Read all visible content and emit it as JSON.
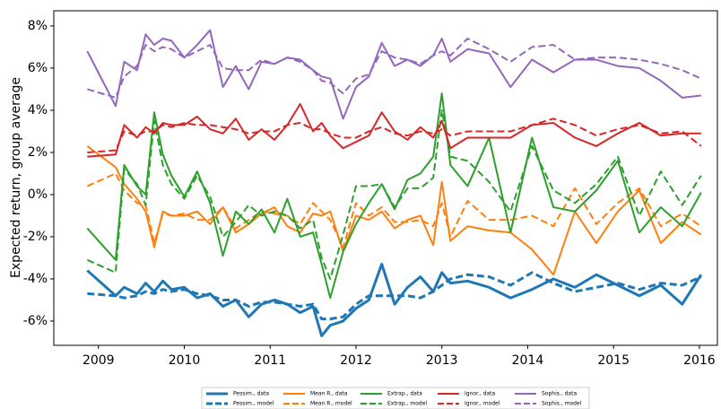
{
  "chart_data": {
    "type": "line",
    "ylabel": "Expected return, group average",
    "xlim": [
      2008.48,
      2016.21
    ],
    "ylim": [
      -7.15,
      8.72
    ],
    "xticks": [
      2009,
      2010,
      2011,
      2012,
      2013,
      2014,
      2015,
      2016
    ],
    "yticks": [
      {
        "value": -6,
        "label": "-6%"
      },
      {
        "value": -4,
        "label": "-4%"
      },
      {
        "value": -2,
        "label": "-2%"
      },
      {
        "value": 0,
        "label": "0%"
      },
      {
        "value": 2,
        "label": "2%"
      },
      {
        "value": 4,
        "label": "4%"
      },
      {
        "value": 6,
        "label": "6%"
      },
      {
        "value": 8,
        "label": "8%"
      }
    ],
    "legend": "bottom",
    "x": [
      2008.87,
      2009.2,
      2009.3,
      2009.45,
      2009.55,
      2009.65,
      2009.75,
      2009.85,
      2010.0,
      2010.15,
      2010.3,
      2010.45,
      2010.6,
      2010.75,
      2010.9,
      2011.05,
      2011.2,
      2011.35,
      2011.5,
      2011.6,
      2011.7,
      2011.85,
      2012.0,
      2012.15,
      2012.3,
      2012.45,
      2012.6,
      2012.75,
      2012.9,
      2013.0,
      2013.1,
      2013.3,
      2013.55,
      2013.8,
      2014.05,
      2014.3,
      2014.55,
      2014.8,
      2015.05,
      2015.3,
      2015.55,
      2015.8,
      2016.02
    ],
    "series": [
      {
        "name": "Pessim., data",
        "color": "#1f77b4",
        "style": "solid",
        "width": 3,
        "values": [
          -3.6,
          -4.8,
          -4.4,
          -4.7,
          -4.2,
          -4.6,
          -4.1,
          -4.5,
          -4.4,
          -4.9,
          -4.7,
          -5.3,
          -5.0,
          -5.8,
          -5.2,
          -5.0,
          -5.2,
          -5.6,
          -5.3,
          -6.7,
          -6.2,
          -6.0,
          -5.4,
          -5.0,
          -3.3,
          -5.2,
          -4.4,
          -3.9,
          -4.6,
          -3.7,
          -4.2,
          -4.1,
          -4.4,
          -4.9,
          -4.5,
          -4.0,
          -4.4,
          -3.8,
          -4.3,
          -4.8,
          -4.3,
          -5.2,
          -3.8
        ]
      },
      {
        "name": "Pessim., model",
        "color": "#1f77b4",
        "style": "dashed",
        "width": 3,
        "values": [
          -4.7,
          -4.8,
          -4.9,
          -4.8,
          -4.6,
          -4.7,
          -4.5,
          -4.6,
          -4.5,
          -4.7,
          -4.8,
          -5.0,
          -5.0,
          -5.3,
          -5.1,
          -5.1,
          -5.2,
          -5.3,
          -5.2,
          -5.9,
          -5.9,
          -5.8,
          -5.2,
          -4.8,
          -4.8,
          -4.8,
          -4.8,
          -4.9,
          -4.6,
          -4.3,
          -4.0,
          -3.8,
          -3.9,
          -4.3,
          -3.7,
          -4.2,
          -4.6,
          -4.4,
          -4.2,
          -4.5,
          -4.2,
          -4.3,
          -3.9
        ]
      },
      {
        "name": "Mean R., data",
        "color": "#ff7f0e",
        "style": "solid",
        "width": 2,
        "values": [
          2.3,
          1.3,
          0.5,
          -0.2,
          -0.8,
          -2.5,
          -0.8,
          -1.0,
          -1.0,
          -0.8,
          -1.4,
          -0.6,
          -1.8,
          -1.4,
          -0.9,
          -0.6,
          -1.5,
          -1.8,
          -0.9,
          -1.0,
          -0.8,
          -2.7,
          -1.0,
          -1.2,
          -0.8,
          -1.6,
          -1.2,
          -1.0,
          -2.4,
          0.6,
          -2.2,
          -1.5,
          -1.7,
          -1.8,
          -2.6,
          -3.8,
          -0.8,
          -2.3,
          -0.8,
          0.2,
          -2.3,
          -1.3,
          -1.9
        ]
      },
      {
        "name": "Mean R., model",
        "color": "#ff7f0e",
        "style": "dashed",
        "width": 2,
        "values": [
          0.4,
          1.0,
          0.2,
          -0.4,
          -0.5,
          -2.3,
          -0.9,
          -1.0,
          -0.9,
          -1.2,
          -1.2,
          -0.6,
          -1.6,
          -1.2,
          -0.8,
          -0.9,
          -1.0,
          -1.4,
          -0.4,
          -0.8,
          -1.2,
          -2.5,
          -0.4,
          -1.0,
          -0.6,
          -1.3,
          -1.3,
          -1.2,
          -1.5,
          -0.4,
          -2.0,
          -0.3,
          -1.2,
          -1.2,
          -1.0,
          -1.5,
          0.3,
          -1.4,
          -0.4,
          0.3,
          -1.5,
          -0.9,
          -1.5
        ]
      },
      {
        "name": "Extrap., data",
        "color": "#2ca02c",
        "style": "solid",
        "width": 2,
        "values": [
          -1.6,
          -3.1,
          1.4,
          0.4,
          0.0,
          3.9,
          1.9,
          0.9,
          -0.1,
          1.1,
          -0.4,
          -2.9,
          -0.8,
          -1.4,
          -0.7,
          -1.8,
          -0.2,
          -2.0,
          -1.8,
          -3.3,
          -4.9,
          -2.7,
          -1.4,
          -0.4,
          0.5,
          -0.7,
          0.7,
          1.0,
          1.8,
          4.8,
          1.4,
          0.4,
          2.7,
          -1.8,
          2.7,
          -0.6,
          -0.8,
          0.2,
          1.6,
          -1.8,
          -0.6,
          -1.5,
          0.1
        ]
      },
      {
        "name": "Extrap., model",
        "color": "#2ca02c",
        "style": "dashed",
        "width": 2,
        "values": [
          -3.1,
          -3.7,
          1.2,
          0.5,
          -0.5,
          3.5,
          1.4,
          0.5,
          -0.2,
          0.9,
          -0.1,
          -2.0,
          -1.3,
          -0.5,
          -1.0,
          -0.8,
          -1.0,
          -1.6,
          -1.2,
          -3.0,
          -4.0,
          -1.9,
          0.4,
          0.4,
          0.5,
          -0.6,
          0.3,
          0.3,
          0.8,
          4.0,
          1.8,
          1.6,
          0.6,
          -0.8,
          2.3,
          0.2,
          -0.4,
          0.5,
          1.8,
          -1.0,
          1.1,
          -0.5,
          0.9
        ]
      },
      {
        "name": "Ignor., data",
        "color": "#d62728",
        "style": "solid",
        "width": 2,
        "values": [
          1.8,
          1.9,
          3.3,
          2.7,
          3.2,
          2.9,
          3.4,
          3.3,
          3.3,
          3.7,
          3.1,
          2.9,
          3.6,
          2.6,
          3.1,
          2.6,
          3.3,
          4.3,
          3.0,
          3.4,
          2.8,
          2.2,
          2.5,
          2.8,
          3.9,
          3.0,
          2.6,
          3.2,
          2.7,
          3.5,
          2.2,
          2.7,
          2.7,
          2.7,
          3.3,
          3.4,
          2.7,
          2.3,
          2.9,
          3.4,
          2.8,
          2.9,
          2.9
        ]
      },
      {
        "name": "Ignor., model",
        "color": "#d62728",
        "style": "dashed",
        "width": 2,
        "values": [
          2.0,
          2.1,
          3.0,
          2.8,
          3.0,
          3.0,
          3.3,
          3.2,
          3.4,
          3.3,
          3.3,
          3.2,
          3.1,
          2.9,
          3.0,
          3.0,
          3.3,
          3.4,
          3.1,
          3.1,
          2.9,
          2.7,
          2.7,
          3.0,
          3.2,
          2.9,
          2.8,
          3.0,
          2.9,
          3.1,
          2.8,
          3.0,
          3.0,
          3.0,
          3.3,
          3.6,
          3.3,
          2.8,
          3.1,
          3.3,
          2.9,
          3.0,
          2.3
        ]
      },
      {
        "name": "Sophis., data",
        "color": "#9467bd",
        "style": "solid",
        "width": 2,
        "values": [
          6.8,
          4.2,
          6.3,
          5.9,
          7.6,
          7.1,
          7.4,
          7.3,
          6.5,
          7.1,
          7.8,
          5.1,
          6.1,
          5.0,
          6.3,
          6.2,
          6.5,
          6.4,
          5.9,
          5.6,
          5.5,
          3.6,
          5.1,
          5.6,
          7.2,
          6.1,
          6.4,
          6.1,
          6.6,
          7.4,
          6.3,
          6.9,
          6.7,
          5.1,
          6.4,
          5.8,
          6.4,
          6.4,
          6.1,
          6.0,
          5.4,
          4.6,
          4.7
        ]
      },
      {
        "name": "Sophis., model",
        "color": "#9467bd",
        "style": "dashed",
        "width": 2,
        "values": [
          5.0,
          4.6,
          5.6,
          6.1,
          7.1,
          6.8,
          7.0,
          6.9,
          6.5,
          6.8,
          7.1,
          6.0,
          5.9,
          5.9,
          6.4,
          6.2,
          6.5,
          6.3,
          5.9,
          5.4,
          5.3,
          4.8,
          5.5,
          5.7,
          6.8,
          6.5,
          6.4,
          6.2,
          6.6,
          6.8,
          6.6,
          7.4,
          6.9,
          6.3,
          7.0,
          7.1,
          6.4,
          6.5,
          6.5,
          6.4,
          6.2,
          5.9,
          5.5
        ]
      }
    ]
  }
}
